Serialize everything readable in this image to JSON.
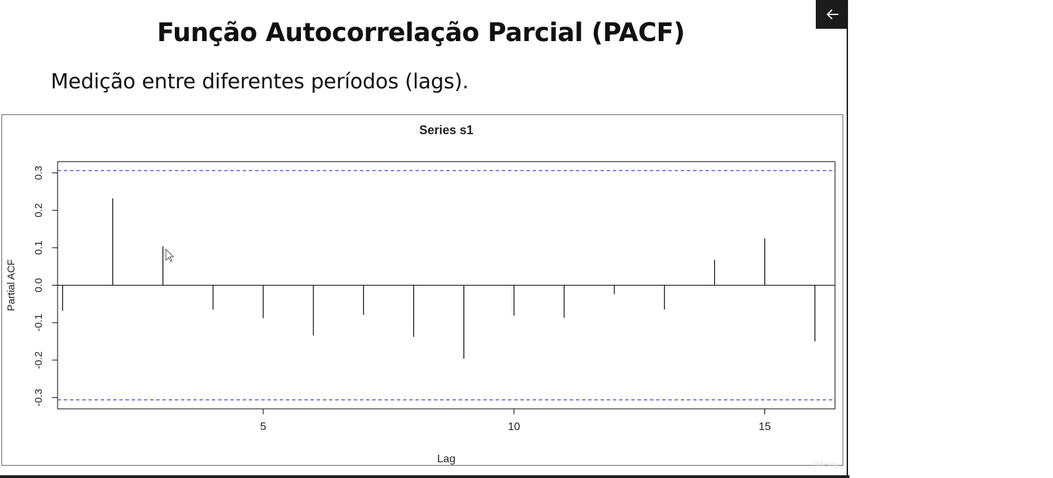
{
  "slide": {
    "title": "Função Autocorrelação Parcial (PACF)",
    "subtitle": "Medição entre diferentes períodos (lags)."
  },
  "controls": {
    "back_icon": "arrow-left-icon"
  },
  "watermark": {
    "text": "Udemy"
  },
  "colors": {
    "confidence_line": "#3b3bd6",
    "spike": "#000000",
    "axis": "#000000"
  },
  "chart_data": {
    "type": "bar",
    "title": "Series  s1",
    "xlabel": "Lag",
    "ylabel": "Partial ACF",
    "xlim": [
      0.9,
      16.4
    ],
    "ylim": [
      -0.33,
      0.33
    ],
    "x_ticks": [
      5,
      10,
      15
    ],
    "y_ticks": [
      -0.3,
      -0.2,
      -0.1,
      0.0,
      0.1,
      0.2,
      0.3
    ],
    "y_tick_labels": [
      "-0.3",
      "-0.2",
      "-0.1",
      "0.0",
      "0.1",
      "0.2",
      "0.3"
    ],
    "confidence_bounds": [
      0.306,
      -0.306
    ],
    "lags": [
      1,
      2,
      3,
      4,
      5,
      6,
      7,
      8,
      9,
      10,
      11,
      12,
      13,
      14,
      15,
      16
    ],
    "values": [
      -0.068,
      0.232,
      0.104,
      -0.065,
      -0.088,
      -0.134,
      -0.079,
      -0.138,
      -0.196,
      -0.081,
      -0.087,
      -0.024,
      -0.065,
      0.068,
      0.125,
      -0.15
    ],
    "grid": false,
    "legend": "none"
  }
}
